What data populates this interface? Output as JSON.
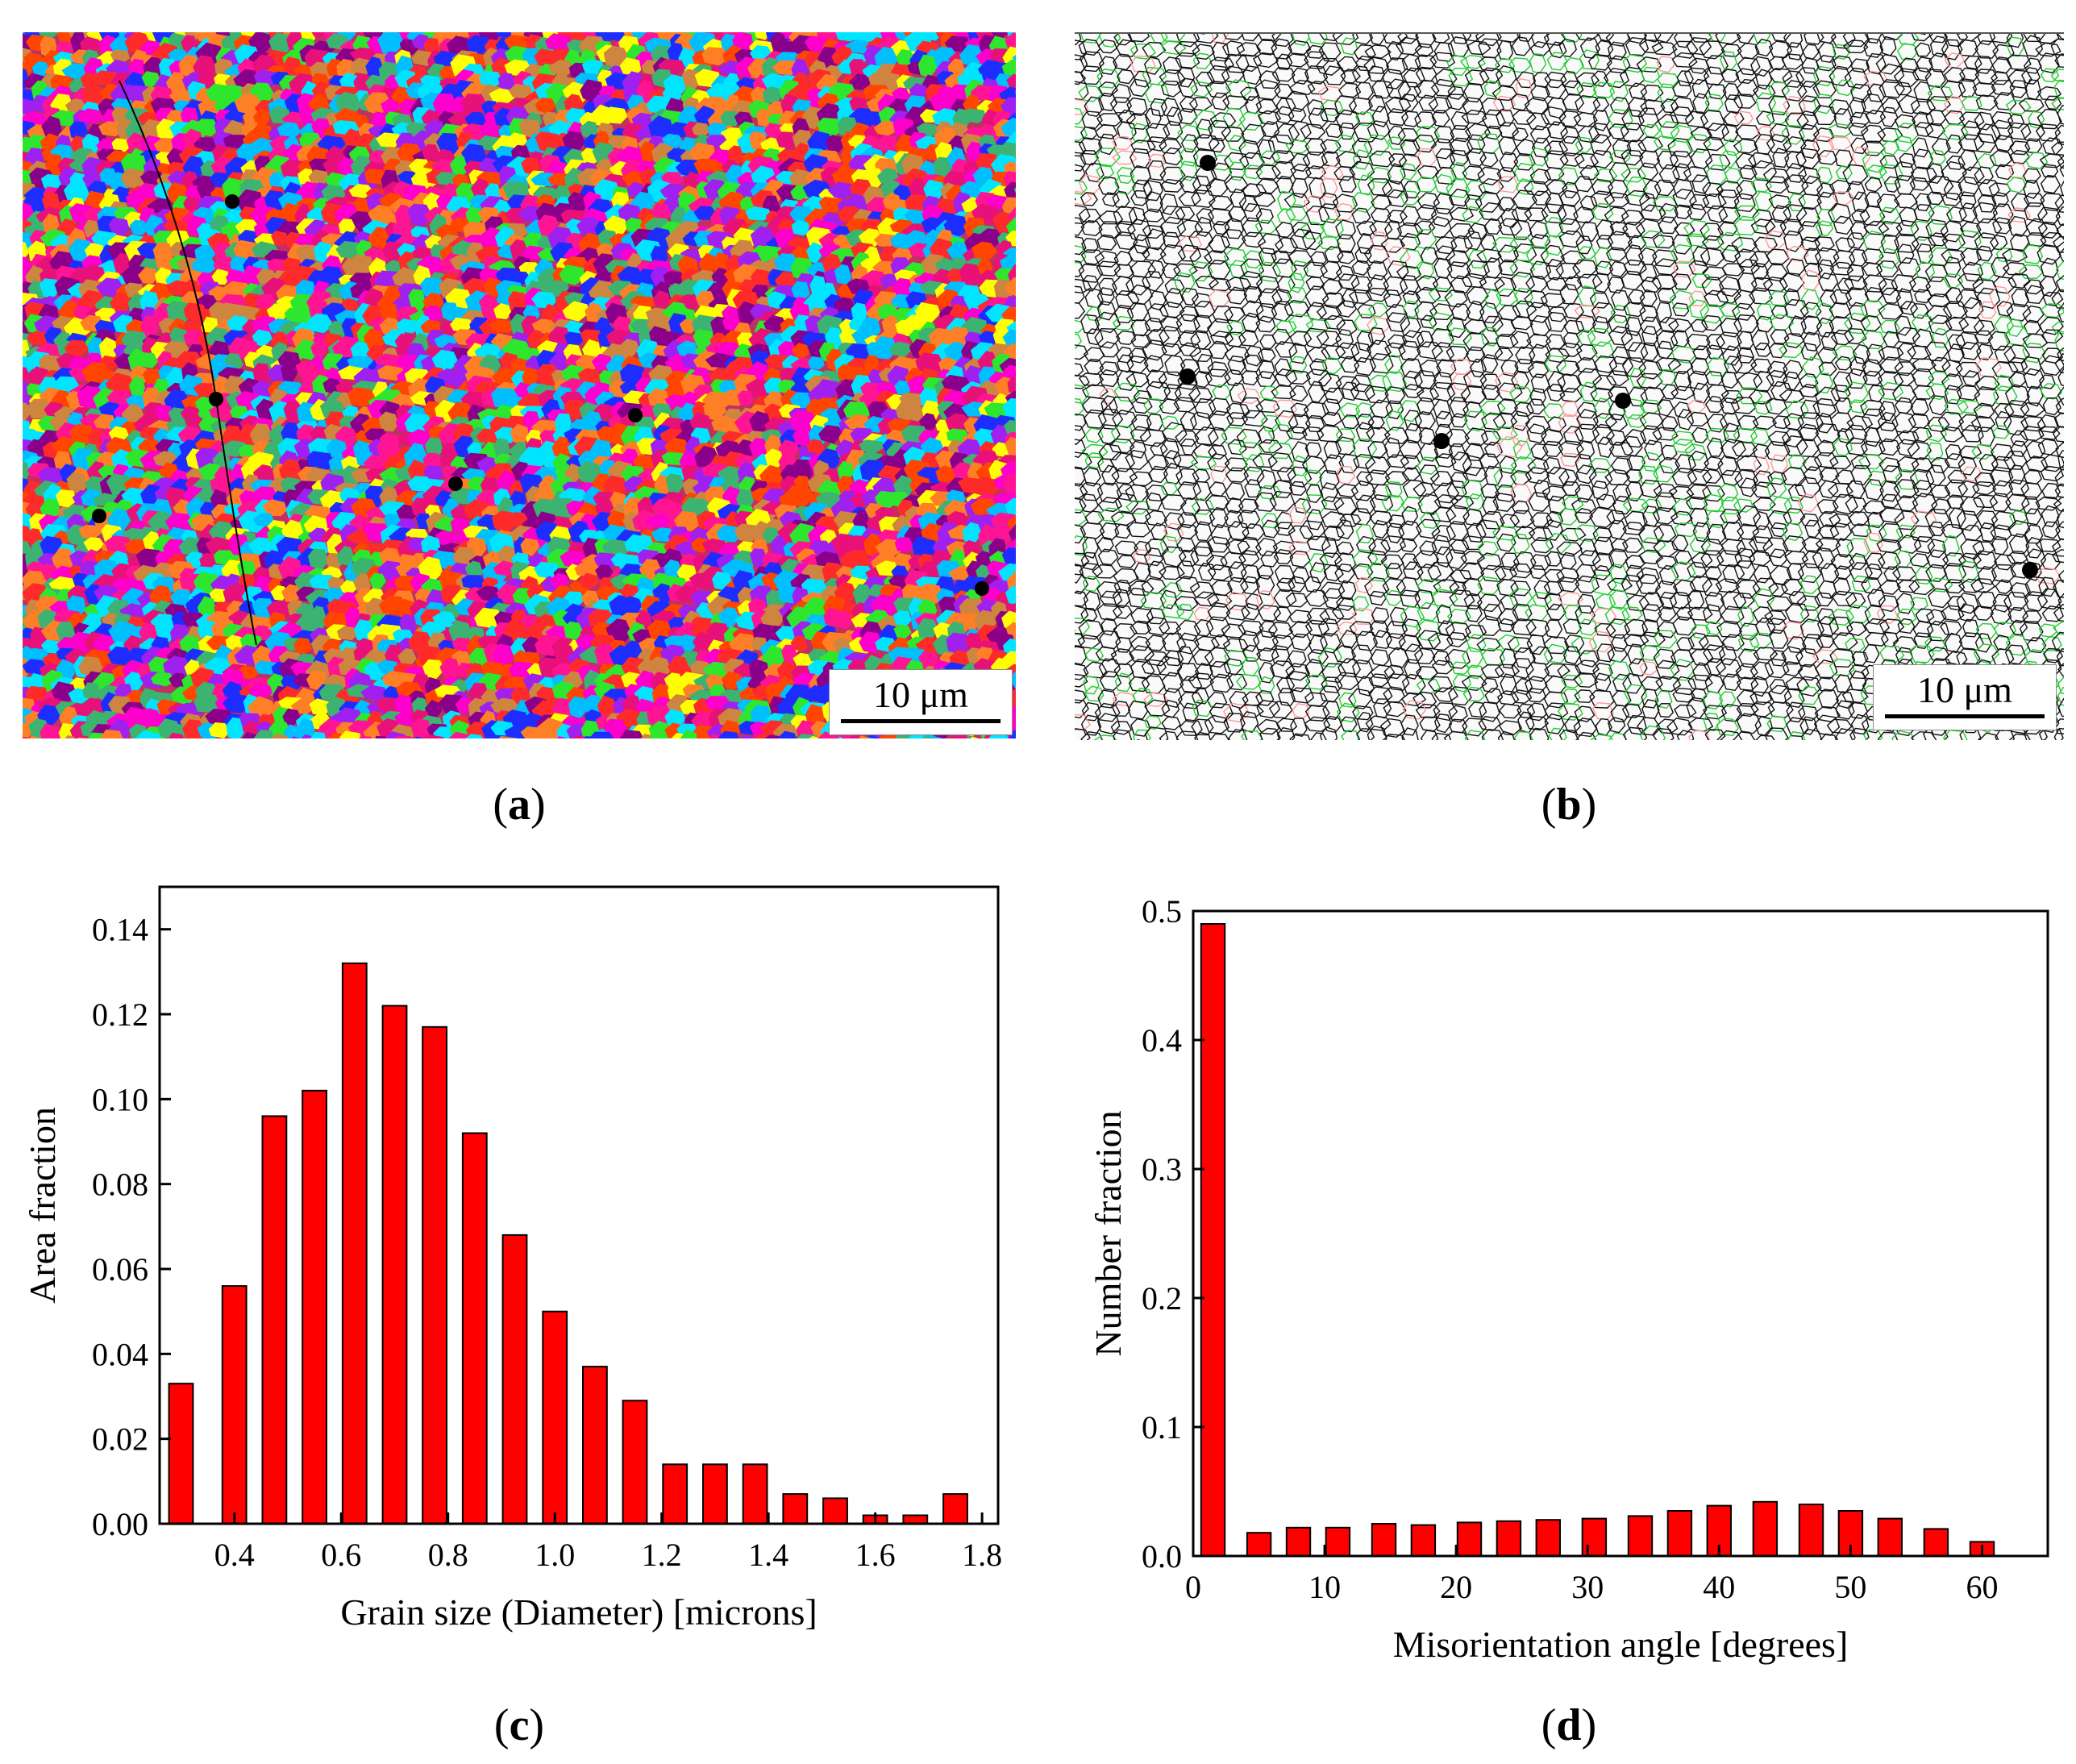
{
  "panels": {
    "a": {
      "caption_open": "(",
      "caption_letter": "a",
      "caption_close": ")",
      "scale_label": "10 μm"
    },
    "b": {
      "caption_open": "(",
      "caption_letter": "b",
      "caption_close": ")",
      "scale_label": "10 μm"
    },
    "c": {
      "caption_open": "(",
      "caption_letter": "c",
      "caption_close": ")"
    },
    "d": {
      "caption_open": "(",
      "caption_letter": "d",
      "caption_close": ")"
    }
  },
  "colors": {
    "bar": "#ff0000",
    "axis": "#000000",
    "grain_palette": [
      "#ff2a2a",
      "#ff00cc",
      "#e8117a",
      "#1e2dff",
      "#00e5ff",
      "#ffff00",
      "#ff7f27",
      "#2ee62e",
      "#a020f0",
      "#cd853f",
      "#ff1493",
      "#3cb371",
      "#ff4500",
      "#8b008b",
      "#00bfff"
    ],
    "boundary_high": "#111111",
    "boundary_low": "#22cc33",
    "boundary_twin": "#ff9999"
  },
  "chart_data": [
    {
      "id": "c",
      "type": "bar",
      "x": [
        0.3,
        0.4,
        0.475,
        0.55,
        0.625,
        0.7,
        0.775,
        0.85,
        0.925,
        1.0,
        1.075,
        1.15,
        1.225,
        1.3,
        1.375,
        1.45,
        1.525,
        1.6,
        1.675,
        1.75
      ],
      "values": [
        0.033,
        0.056,
        0.096,
        0.102,
        0.132,
        0.122,
        0.117,
        0.092,
        0.068,
        0.05,
        0.037,
        0.029,
        0.014,
        0.014,
        0.014,
        0.007,
        0.006,
        0.002,
        0.002,
        0.007
      ],
      "bar_width": 0.045,
      "xlim": [
        0.26,
        1.83
      ],
      "ylim": [
        0,
        0.15
      ],
      "xticks": [
        0.4,
        0.6,
        0.8,
        1.0,
        1.2,
        1.4,
        1.6,
        1.8
      ],
      "xtick_labels": [
        "0.4",
        "0.6",
        "0.8",
        "1.0",
        "1.2",
        "1.4",
        "1.6",
        "1.8"
      ],
      "yticks": [
        0,
        0.02,
        0.04,
        0.06,
        0.08,
        0.1,
        0.12,
        0.14
      ],
      "ytick_labels": [
        "0.00",
        "0.02",
        "0.04",
        "0.06",
        "0.08",
        "0.10",
        "0.12",
        "0.14"
      ],
      "xlabel": "Grain size (Diameter) [microns]",
      "ylabel": "Area fraction"
    },
    {
      "id": "d",
      "type": "bar",
      "x": [
        1.5,
        5,
        8,
        11,
        14.5,
        17.5,
        21,
        24,
        27,
        30.5,
        34,
        37,
        40,
        43.5,
        47,
        50,
        53,
        56.5,
        60
      ],
      "values": [
        0.49,
        0.018,
        0.022,
        0.022,
        0.025,
        0.024,
        0.026,
        0.027,
        0.028,
        0.029,
        0.031,
        0.035,
        0.039,
        0.042,
        0.04,
        0.035,
        0.029,
        0.021,
        0.011
      ],
      "bar_width": 1.8,
      "xlim": [
        0,
        65
      ],
      "ylim": [
        0,
        0.5
      ],
      "xticks": [
        0,
        10,
        20,
        30,
        40,
        50,
        60
      ],
      "xtick_labels": [
        "0",
        "10",
        "20",
        "30",
        "40",
        "50",
        "60"
      ],
      "yticks": [
        0,
        0.1,
        0.2,
        0.3,
        0.4,
        0.5
      ],
      "ytick_labels": [
        "0.0",
        "0.1",
        "0.2",
        "0.3",
        "0.4",
        "0.5"
      ],
      "xlabel": "Misorientation angle [degrees]",
      "ylabel": "Number fraction"
    }
  ]
}
